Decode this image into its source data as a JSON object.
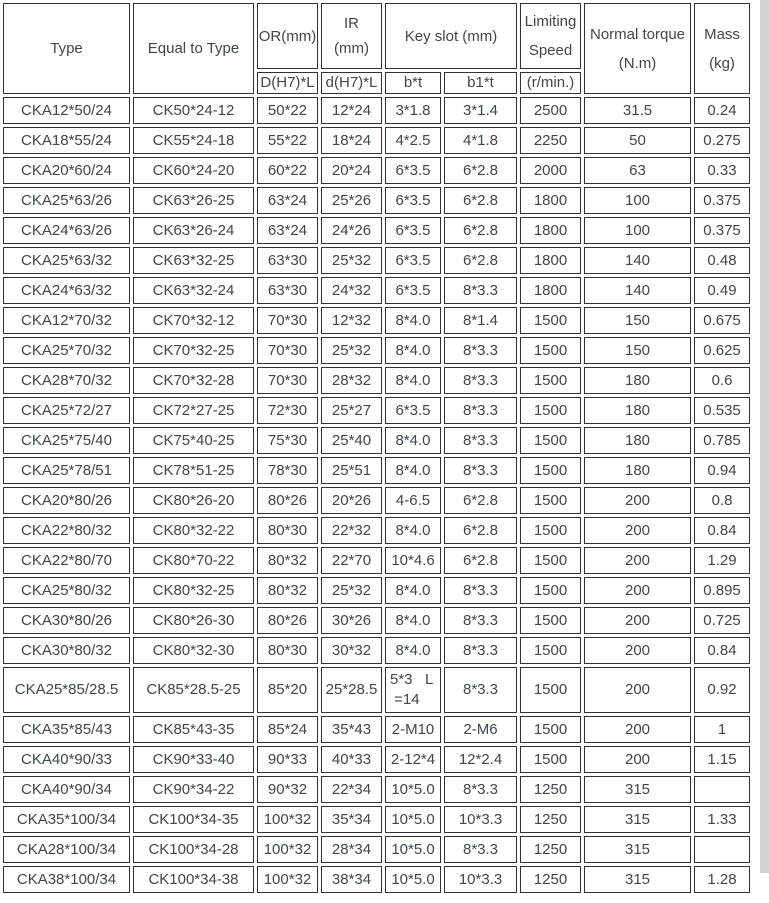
{
  "table": {
    "header": {
      "type": "Type",
      "equal_to_type": "Equal to Type",
      "or_mm": "OR(mm)",
      "or_sub": "D(H7)*L",
      "ir_mm": "IR\n(mm)",
      "ir_sub": "d(H7)*L",
      "key_slot": "Key slot (mm)",
      "key_sub_bt": "b*t",
      "key_sub_b1t": "b1*t",
      "limiting_speed": "Limiting\nSpeed",
      "limiting_sub": "(r/min.)",
      "normal_torque": "Normal torque\n(N.m)",
      "mass": "Mass\n(kg)"
    },
    "columns": [
      "type",
      "equal_to_type",
      "or",
      "ir",
      "bt",
      "b1t",
      "speed",
      "torque",
      "mass"
    ],
    "rows": [
      [
        "CKA12*50/24",
        "CK50*24-12",
        "50*22",
        "12*24",
        "3*1.8",
        "3*1.4",
        "2500",
        "31.5",
        "0.24"
      ],
      [
        "CKA18*55/24",
        "CK55*24-18",
        "55*22",
        "18*24",
        "4*2.5",
        "4*1.8",
        "2250",
        "50",
        "0.275"
      ],
      [
        "CKA20*60/24",
        "CK60*24-20",
        "60*22",
        "20*24",
        "6*3.5",
        "6*2.8",
        "2000",
        "63",
        "0.33"
      ],
      [
        "CKA25*63/26",
        "CK63*26-25",
        "63*24",
        "25*26",
        "6*3.5",
        "6*2.8",
        "1800",
        "100",
        "0.375"
      ],
      [
        "CKA24*63/26",
        "CK63*26-24",
        "63*24",
        "24*26",
        "6*3.5",
        "6*2.8",
        "1800",
        "100",
        "0.375"
      ],
      [
        "CKA25*63/32",
        "CK63*32-25",
        "63*30",
        "25*32",
        "6*3.5",
        "6*2.8",
        "1800",
        "140",
        "0.48"
      ],
      [
        "CKA24*63/32",
        "CK63*32-24",
        "63*30",
        "24*32",
        "6*3.5",
        "8*3.3",
        "1800",
        "140",
        "0.49"
      ],
      [
        "CKA12*70/32",
        "CK70*32-12",
        "70*30",
        "12*32",
        "8*4.0",
        "8*1.4",
        "1500",
        "150",
        "0.675"
      ],
      [
        "CKA25*70/32",
        "CK70*32-25",
        "70*30",
        "25*32",
        "8*4.0",
        "8*3.3",
        "1500",
        "150",
        "0.625"
      ],
      [
        "CKA28*70/32",
        "CK70*32-28",
        "70*30",
        "28*32",
        "8*4.0",
        "8*3.3",
        "1500",
        "180",
        "0.6"
      ],
      [
        "CKA25*72/27",
        "CK72*27-25",
        "72*30",
        "25*27",
        "6*3.5",
        "8*3.3",
        "1500",
        "180",
        "0.535"
      ],
      [
        "CKA25*75/40",
        "CK75*40-25",
        "75*30",
        "25*40",
        "8*4.0",
        "8*3.3",
        "1500",
        "180",
        "0.785"
      ],
      [
        "CKA25*78/51",
        "CK78*51-25",
        "78*30",
        "25*51",
        "8*4.0",
        "8*3.3",
        "1500",
        "180",
        "0.94"
      ],
      [
        "CKA20*80/26",
        "CK80*26-20",
        "80*26",
        "20*26",
        "4-6.5",
        "6*2.8",
        "1500",
        "200",
        "0.8"
      ],
      [
        "CKA22*80/32",
        "CK80*32-22",
        "80*30",
        "22*32",
        "8*4.0",
        "6*2.8",
        "1500",
        "200",
        "0.84"
      ],
      [
        "CKA22*80/70",
        "CK80*70-22",
        "80*32",
        "22*70",
        "10*4.6",
        "6*2.8",
        "1500",
        "200",
        "1.29"
      ],
      [
        "CKA25*80/32",
        "CK80*32-25",
        "80*32",
        "25*32",
        "8*4.0",
        "8*3.3",
        "1500",
        "200",
        "0.895"
      ],
      [
        "CKA30*80/26",
        "CK80*26-30",
        "80*26",
        "30*26",
        "8*4.0",
        "8*3.3",
        "1500",
        "200",
        "0.725"
      ],
      [
        "CKA30*80/32",
        "CK80*32-30",
        "80*30",
        "30*32",
        "8*4.0",
        "8*3.3",
        "1500",
        "200",
        "0.84"
      ],
      [
        "CKA25*85/28.5",
        "CK85*28.5-25",
        "85*20",
        "25*28.5",
        "5*3   L\n =14",
        "8*3.3",
        "1500",
        "200",
        "0.92"
      ],
      [
        "CKA35*85/43",
        "CK85*43-35",
        "85*24",
        "35*43",
        "2-M10",
        "2-M6",
        "1500",
        "200",
        "1"
      ],
      [
        "CKA40*90/33",
        "CK90*33-40",
        "90*33",
        "40*33",
        "2-12*4",
        "12*2.4",
        "1500",
        "200",
        "1.15"
      ],
      [
        "CKA40*90/34",
        "CK90*34-22",
        "90*32",
        "22*34",
        "10*5.0",
        "8*3.3",
        "1250",
        "315",
        ""
      ],
      [
        "CKA35*100/34",
        "CK100*34-35",
        "100*32",
        "35*34",
        "10*5.0",
        "10*3.3",
        "1250",
        "315",
        "1.33"
      ],
      [
        "CKA28*100/34",
        "CK100*34-28",
        "100*32",
        "28*34",
        "10*5.0",
        "8*3.3",
        "1250",
        "315",
        ""
      ],
      [
        "CKA38*100/34",
        "CK100*34-38",
        "100*32",
        "38*34",
        "10*5.0",
        "10*3.3",
        "1250",
        "315",
        "1.28"
      ]
    ]
  },
  "colors": {
    "border": "#323232",
    "text": "#3f464e",
    "right_strip": "#d2d2d4",
    "background": "#ffffff"
  }
}
